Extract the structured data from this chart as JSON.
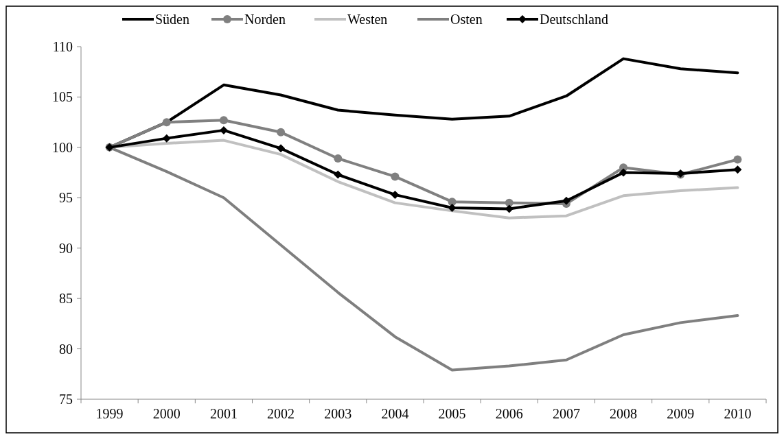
{
  "chart_data": {
    "type": "line",
    "categories": [
      "1999",
      "2000",
      "2001",
      "2002",
      "2003",
      "2004",
      "2005",
      "2006",
      "2007",
      "2008",
      "2009",
      "2010"
    ],
    "ylim": [
      75,
      110
    ],
    "yticks": [
      75,
      80,
      85,
      90,
      95,
      100,
      105,
      110
    ],
    "grid": false,
    "legend": "top",
    "series": [
      {
        "name": "Süden",
        "color": "#000000",
        "marker": "none",
        "values": [
          100,
          102.5,
          106.2,
          105.2,
          103.7,
          103.2,
          102.8,
          103.1,
          105.1,
          108.8,
          107.8,
          107.4
        ]
      },
      {
        "name": "Norden",
        "color": "#808080",
        "marker": "circle",
        "values": [
          100,
          102.5,
          102.7,
          101.5,
          98.9,
          97.1,
          94.6,
          94.5,
          94.4,
          98.0,
          97.3,
          98.8
        ]
      },
      {
        "name": "Westen",
        "color": "#c0c0c0",
        "marker": "none",
        "values": [
          100,
          100.4,
          100.7,
          99.3,
          96.6,
          94.5,
          93.7,
          93.0,
          93.2,
          95.2,
          95.7,
          96.0
        ]
      },
      {
        "name": "Osten",
        "color": "#7f7f7f",
        "marker": "none",
        "values": [
          100,
          97.6,
          95.0,
          90.3,
          85.6,
          81.2,
          77.9,
          78.3,
          78.9,
          81.4,
          82.6,
          83.3
        ]
      },
      {
        "name": "Deutschland",
        "color": "#000000",
        "marker": "diamond",
        "values": [
          100,
          100.9,
          101.7,
          99.9,
          97.3,
          95.3,
          94.0,
          93.9,
          94.7,
          97.5,
          97.4,
          97.8
        ]
      }
    ]
  }
}
